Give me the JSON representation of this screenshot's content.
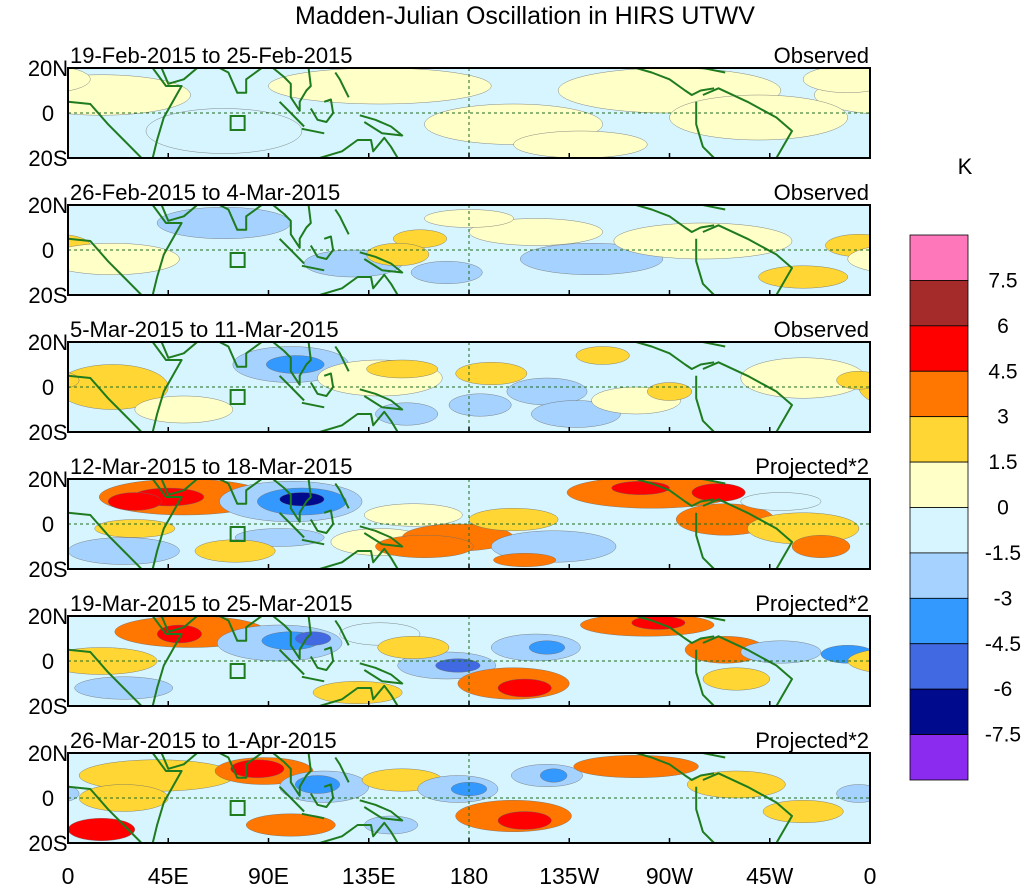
{
  "title": "Madden-Julian Oscillation in HIRS UTWV",
  "unit": "K",
  "lat_labels": [
    "20N",
    "0",
    "20S"
  ],
  "lon_labels": [
    "0",
    "45E",
    "90E",
    "135E",
    "180",
    "135W",
    "90W",
    "45W",
    "0"
  ],
  "colors": {
    "land": "#1e7b1e",
    "frame": "#000000"
  },
  "panels": [
    {
      "date": "19-Feb-2015 to 25-Feb-2015",
      "type": "Observed"
    },
    {
      "date": "26-Feb-2015 to 4-Mar-2015",
      "type": "Observed"
    },
    {
      "date": "5-Mar-2015 to 11-Mar-2015",
      "type": "Observed"
    },
    {
      "date": "12-Mar-2015 to 18-Mar-2015",
      "type": "Projected*2"
    },
    {
      "date": "19-Mar-2015 to 25-Mar-2015",
      "type": "Projected*2"
    },
    {
      "date": "26-Mar-2015 to 1-Apr-2015",
      "type": "Projected*2"
    }
  ],
  "chart_data": {
    "type": "heatmap",
    "title": "Madden-Julian Oscillation in HIRS UTWV",
    "x_ticks": [
      "0",
      "45E",
      "90E",
      "135E",
      "180",
      "135W",
      "90W",
      "45W",
      "0"
    ],
    "y_ticks": [
      "20N",
      "0",
      "20S"
    ],
    "x_range": [
      0,
      360
    ],
    "y_range": [
      -20,
      20
    ],
    "colorbar": {
      "unit": "K",
      "levels": [
        "7.5",
        "6",
        "4.5",
        "3",
        "1.5",
        "0",
        "-1.5",
        "-3",
        "-4.5",
        "-6",
        "-7.5"
      ],
      "colors": [
        "#ff77bb",
        "#a52a2a",
        "#ff0000",
        "#ff7700",
        "#ffd633",
        "#ffffc8",
        "#d6f5ff",
        "#a6d2ff",
        "#3399ff",
        "#4169e1",
        "#000a8c",
        "#8c2bf0"
      ]
    }
  }
}
